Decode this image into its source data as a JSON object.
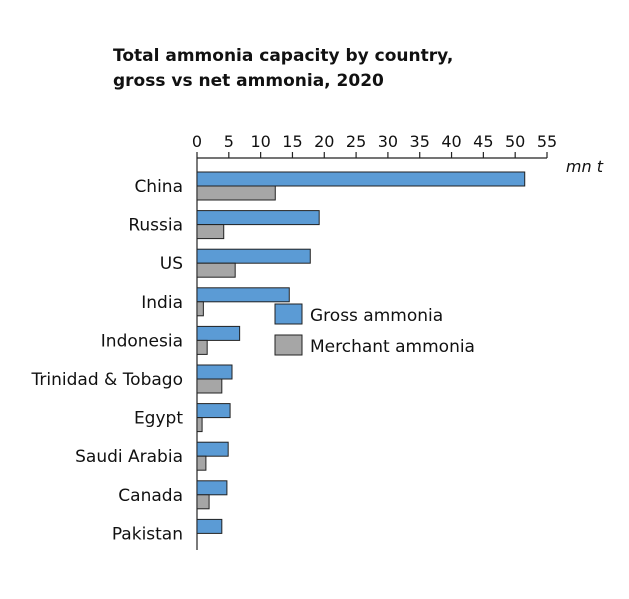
{
  "chart_data": {
    "type": "bar",
    "orientation": "horizontal",
    "title_lines": [
      "Total ammonia capacity by country,",
      "gross vs net ammonia, 2020"
    ],
    "unit": "mn t",
    "categories": [
      "China",
      "Russia",
      "US",
      "India",
      "Indonesia",
      "Trinidad & Tobago",
      "Egypt",
      "Saudi Arabia",
      "Canada",
      "Pakistan"
    ],
    "series": [
      {
        "name": "Gross ammonia",
        "color": "#5B9BD5",
        "values": [
          51.5,
          19.2,
          17.8,
          14.5,
          6.7,
          5.5,
          5.2,
          4.9,
          4.7,
          3.9
        ]
      },
      {
        "name": "Merchant ammonia",
        "color": "#A6A6A6",
        "values": [
          12.3,
          4.2,
          6.0,
          1.0,
          1.6,
          3.9,
          0.8,
          1.4,
          1.9,
          0.0
        ]
      }
    ],
    "xlim": [
      0,
      55
    ],
    "xticks": [
      0,
      5,
      10,
      15,
      20,
      25,
      30,
      35,
      40,
      45,
      50,
      55
    ],
    "axis_position": "top",
    "legend_position": "center-right"
  }
}
